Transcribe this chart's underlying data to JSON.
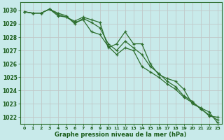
{
  "x": [
    0,
    1,
    2,
    3,
    4,
    5,
    6,
    7,
    8,
    9,
    10,
    11,
    12,
    13,
    14,
    15,
    16,
    17,
    18,
    19,
    20,
    21,
    22,
    23
  ],
  "line1": [
    1029.9,
    1029.8,
    1029.8,
    1030.1,
    1029.6,
    1029.5,
    1029.2,
    1029.5,
    1029.3,
    1029.1,
    1027.2,
    1027.5,
    1028.4,
    1027.5,
    1027.5,
    1026.0,
    1025.2,
    1024.9,
    1024.7,
    1024.1,
    1023.0,
    1022.7,
    1022.4,
    1021.6
  ],
  "line2": [
    1029.9,
    1029.8,
    1029.8,
    1030.1,
    1029.8,
    1029.6,
    1029.0,
    1029.4,
    1029.1,
    1028.7,
    1027.5,
    1027.0,
    1027.7,
    1027.2,
    1026.7,
    1025.8,
    1025.3,
    1024.7,
    1024.3,
    1023.6,
    1023.2,
    1022.6,
    1022.2,
    1021.8
  ],
  "line3": [
    1029.9,
    1029.8,
    1029.8,
    1030.1,
    1029.7,
    1029.5,
    1029.1,
    1029.3,
    1028.4,
    1028.2,
    1027.3,
    1026.7,
    1027.2,
    1027.0,
    1025.8,
    1025.4,
    1025.0,
    1024.5,
    1024.1,
    1023.5,
    1023.1,
    1022.7,
    1022.1,
    1022.0
  ],
  "bg_color": "#c8eaea",
  "grid_color": "#c0c8c8",
  "line_color": "#2d6e2d",
  "xlabel": "Graphe pression niveau de la mer (hPa)",
  "xlabel_color": "#1a5c1a",
  "tick_color": "#1a5c1a",
  "ylim_min": 1021.5,
  "ylim_max": 1030.6,
  "yticks": [
    1022,
    1023,
    1024,
    1025,
    1026,
    1027,
    1028,
    1029,
    1030
  ],
  "xlim_min": -0.5,
  "xlim_max": 23.5
}
